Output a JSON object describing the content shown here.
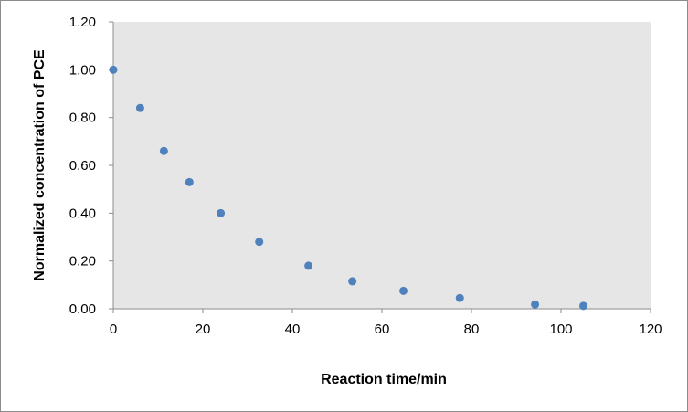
{
  "chart_data": {
    "type": "scatter",
    "title": "",
    "xlabel": "Reaction time/min",
    "ylabel": "Normalized concentration of PCE",
    "xlim": [
      0,
      120
    ],
    "ylim": [
      0,
      1.2
    ],
    "x_ticks": [
      "0",
      "20",
      "40",
      "60",
      "80",
      "100",
      "120"
    ],
    "y_ticks": [
      "0.00",
      "0.20",
      "0.40",
      "0.60",
      "0.80",
      "1.00",
      "1.20"
    ],
    "grid": false,
    "legend": "none",
    "plot_background": "#e6e6e6",
    "marker_color": "#4f81bd",
    "series": [
      {
        "points": [
          {
            "x": 0,
            "y": 1.0
          },
          {
            "x": 6,
            "y": 0.84
          },
          {
            "x": 11.3,
            "y": 0.66
          },
          {
            "x": 17,
            "y": 0.53
          },
          {
            "x": 24,
            "y": 0.4
          },
          {
            "x": 32.6,
            "y": 0.28
          },
          {
            "x": 43.6,
            "y": 0.18
          },
          {
            "x": 53.4,
            "y": 0.115
          },
          {
            "x": 64.8,
            "y": 0.075
          },
          {
            "x": 77.4,
            "y": 0.045
          },
          {
            "x": 94.2,
            "y": 0.018
          },
          {
            "x": 105,
            "y": 0.012
          }
        ]
      }
    ]
  }
}
